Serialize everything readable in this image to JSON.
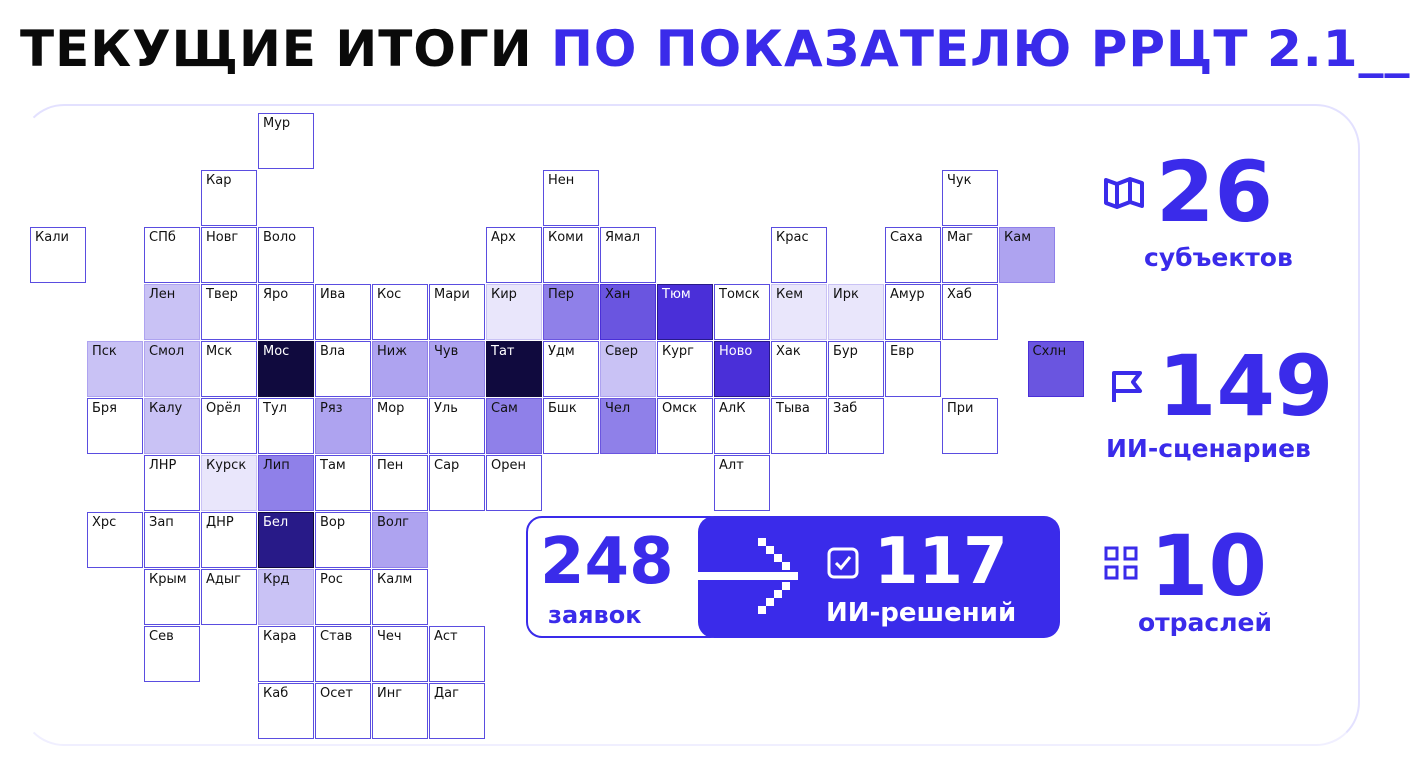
{
  "title": {
    "part1": "ТЕКУЩИЕ ИТОГИ",
    "part2": "ПО ПОКАЗАТЕЛЮ РРЦТ 2.1__"
  },
  "colors": {
    "accent": "#3a2bea",
    "levels": [
      "#ffffff",
      "#e9e6fb",
      "#c9c2f5",
      "#aea3f0",
      "#8f80e9",
      "#6a55e0",
      "#4a2fd8",
      "#281a88",
      "#100a3e"
    ]
  },
  "regions": [
    {
      "label": "Мур",
      "col": 4,
      "row": 0,
      "level": 0
    },
    {
      "label": "Кар",
      "col": 3,
      "row": 1,
      "level": 0
    },
    {
      "label": "Нен",
      "col": 9,
      "row": 1,
      "level": 0
    },
    {
      "label": "Чук",
      "col": 16,
      "row": 1,
      "level": 0
    },
    {
      "label": "Кали",
      "col": 0,
      "row": 2,
      "level": 0
    },
    {
      "label": "СПб",
      "col": 2,
      "row": 2,
      "level": 0
    },
    {
      "label": "Новг",
      "col": 3,
      "row": 2,
      "level": 0
    },
    {
      "label": "Воло",
      "col": 4,
      "row": 2,
      "level": 0
    },
    {
      "label": "Арх",
      "col": 8,
      "row": 2,
      "level": 0
    },
    {
      "label": "Коми",
      "col": 9,
      "row": 2,
      "level": 0
    },
    {
      "label": "Ямал",
      "col": 10,
      "row": 2,
      "level": 0
    },
    {
      "label": "Крас",
      "col": 13,
      "row": 2,
      "level": 0
    },
    {
      "label": "Саха",
      "col": 15,
      "row": 2,
      "level": 0
    },
    {
      "label": "Маг",
      "col": 16,
      "row": 2,
      "level": 0
    },
    {
      "label": "Кам",
      "col": 17,
      "row": 2,
      "level": 3
    },
    {
      "label": "Лен",
      "col": 2,
      "row": 3,
      "level": 2
    },
    {
      "label": "Твер",
      "col": 3,
      "row": 3,
      "level": 0
    },
    {
      "label": "Яро",
      "col": 4,
      "row": 3,
      "level": 0
    },
    {
      "label": "Ива",
      "col": 5,
      "row": 3,
      "level": 0
    },
    {
      "label": "Кос",
      "col": 6,
      "row": 3,
      "level": 0
    },
    {
      "label": "Мари",
      "col": 7,
      "row": 3,
      "level": 0
    },
    {
      "label": "Кир",
      "col": 8,
      "row": 3,
      "level": 1
    },
    {
      "label": "Пер",
      "col": 9,
      "row": 3,
      "level": 4
    },
    {
      "label": "Хан",
      "col": 10,
      "row": 3,
      "level": 5
    },
    {
      "label": "Тюм",
      "col": 11,
      "row": 3,
      "level": 6
    },
    {
      "label": "Томск",
      "col": 12,
      "row": 3,
      "level": 0
    },
    {
      "label": "Кем",
      "col": 13,
      "row": 3,
      "level": 1
    },
    {
      "label": "Ирк",
      "col": 14,
      "row": 3,
      "level": 1
    },
    {
      "label": "Амур",
      "col": 15,
      "row": 3,
      "level": 0
    },
    {
      "label": "Хаб",
      "col": 16,
      "row": 3,
      "level": 0
    },
    {
      "label": "Пск",
      "col": 1,
      "row": 4,
      "level": 2
    },
    {
      "label": "Смол",
      "col": 2,
      "row": 4,
      "level": 2
    },
    {
      "label": "Мск",
      "col": 3,
      "row": 4,
      "level": 0
    },
    {
      "label": "Мос",
      "col": 4,
      "row": 4,
      "level": 8
    },
    {
      "label": "Вла",
      "col": 5,
      "row": 4,
      "level": 0
    },
    {
      "label": "Ниж",
      "col": 6,
      "row": 4,
      "level": 3
    },
    {
      "label": "Чув",
      "col": 7,
      "row": 4,
      "level": 3
    },
    {
      "label": "Тат",
      "col": 8,
      "row": 4,
      "level": 8
    },
    {
      "label": "Удм",
      "col": 9,
      "row": 4,
      "level": 0
    },
    {
      "label": "Свер",
      "col": 10,
      "row": 4,
      "level": 2
    },
    {
      "label": "Кург",
      "col": 11,
      "row": 4,
      "level": 0
    },
    {
      "label": "Ново",
      "col": 12,
      "row": 4,
      "level": 6
    },
    {
      "label": "Хак",
      "col": 13,
      "row": 4,
      "level": 0
    },
    {
      "label": "Бур",
      "col": 14,
      "row": 4,
      "level": 0
    },
    {
      "label": "Евр",
      "col": 15,
      "row": 4,
      "level": 0
    },
    {
      "label": "Схлн",
      "col": 17.5,
      "row": 4,
      "level": 5
    },
    {
      "label": "Бря",
      "col": 1,
      "row": 5,
      "level": 0
    },
    {
      "label": "Калу",
      "col": 2,
      "row": 5,
      "level": 2
    },
    {
      "label": "Орёл",
      "col": 3,
      "row": 5,
      "level": 0
    },
    {
      "label": "Тул",
      "col": 4,
      "row": 5,
      "level": 0
    },
    {
      "label": "Ряз",
      "col": 5,
      "row": 5,
      "level": 3
    },
    {
      "label": "Мор",
      "col": 6,
      "row": 5,
      "level": 0
    },
    {
      "label": "Уль",
      "col": 7,
      "row": 5,
      "level": 0
    },
    {
      "label": "Сам",
      "col": 8,
      "row": 5,
      "level": 4
    },
    {
      "label": "Бшк",
      "col": 9,
      "row": 5,
      "level": 0
    },
    {
      "label": "Чел",
      "col": 10,
      "row": 5,
      "level": 4
    },
    {
      "label": "Омск",
      "col": 11,
      "row": 5,
      "level": 0
    },
    {
      "label": "АлК",
      "col": 12,
      "row": 5,
      "level": 0
    },
    {
      "label": "Тыва",
      "col": 13,
      "row": 5,
      "level": 0
    },
    {
      "label": "Заб",
      "col": 14,
      "row": 5,
      "level": 0
    },
    {
      "label": "При",
      "col": 16,
      "row": 5,
      "level": 0
    },
    {
      "label": "ЛНР",
      "col": 2,
      "row": 6,
      "level": 0
    },
    {
      "label": "Курск",
      "col": 3,
      "row": 6,
      "level": 1
    },
    {
      "label": "Лип",
      "col": 4,
      "row": 6,
      "level": 4
    },
    {
      "label": "Там",
      "col": 5,
      "row": 6,
      "level": 0
    },
    {
      "label": "Пен",
      "col": 6,
      "row": 6,
      "level": 0
    },
    {
      "label": "Сар",
      "col": 7,
      "row": 6,
      "level": 0
    },
    {
      "label": "Орен",
      "col": 8,
      "row": 6,
      "level": 0
    },
    {
      "label": "Алт",
      "col": 12,
      "row": 6,
      "level": 0
    },
    {
      "label": "Хрс",
      "col": 1,
      "row": 7,
      "level": 0
    },
    {
      "label": "Зап",
      "col": 2,
      "row": 7,
      "level": 0
    },
    {
      "label": "ДНР",
      "col": 3,
      "row": 7,
      "level": 0
    },
    {
      "label": "Бел",
      "col": 4,
      "row": 7,
      "level": 7
    },
    {
      "label": "Вор",
      "col": 5,
      "row": 7,
      "level": 0
    },
    {
      "label": "Волг",
      "col": 6,
      "row": 7,
      "level": 3
    },
    {
      "label": "Крым",
      "col": 2,
      "row": 8,
      "level": 0
    },
    {
      "label": "Адыг",
      "col": 3,
      "row": 8,
      "level": 0
    },
    {
      "label": "Крд",
      "col": 4,
      "row": 8,
      "level": 2
    },
    {
      "label": "Рос",
      "col": 5,
      "row": 8,
      "level": 0
    },
    {
      "label": "Калм",
      "col": 6,
      "row": 8,
      "level": 0
    },
    {
      "label": "Сев",
      "col": 2,
      "row": 9,
      "level": 0
    },
    {
      "label": "Кара",
      "col": 4,
      "row": 9,
      "level": 0
    },
    {
      "label": "Став",
      "col": 5,
      "row": 9,
      "level": 0
    },
    {
      "label": "Чеч",
      "col": 6,
      "row": 9,
      "level": 0
    },
    {
      "label": "Аст",
      "col": 7,
      "row": 9,
      "level": 0
    },
    {
      "label": "Каб",
      "col": 4,
      "row": 10,
      "level": 0
    },
    {
      "label": "Осет",
      "col": 5,
      "row": 10,
      "level": 0
    },
    {
      "label": "Инг",
      "col": 6,
      "row": 10,
      "level": 0
    },
    {
      "label": "Даг",
      "col": 7,
      "row": 10,
      "level": 0
    }
  ],
  "stats": {
    "subjects": {
      "value": "26",
      "label": "субъектов",
      "icon": "map-icon"
    },
    "scenarios": {
      "value": "149",
      "label": "ИИ-сценариев",
      "icon": "flag-icon"
    },
    "industries": {
      "value": "10",
      "label": "отраслей",
      "icon": "grid-icon"
    },
    "applications": {
      "value": "248",
      "label": "заявок"
    },
    "solutions": {
      "value": "117",
      "label": "ИИ-решений",
      "icon": "checkbox-icon"
    }
  }
}
